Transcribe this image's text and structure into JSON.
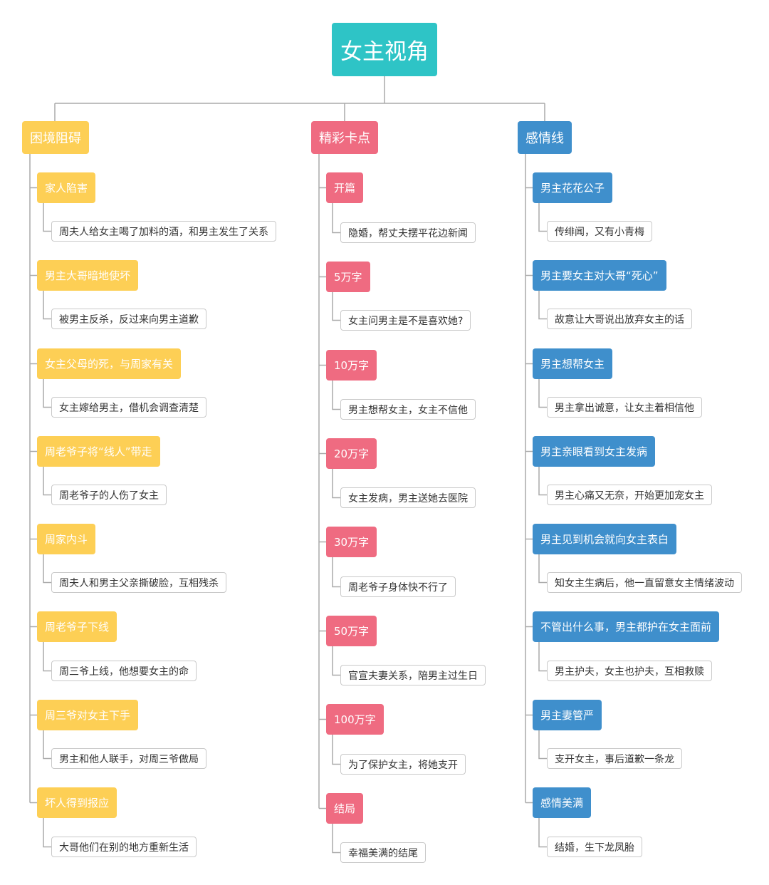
{
  "title": "女主视角",
  "colors": {
    "root": "#2ec4c6",
    "yellow": "#fdcf55",
    "pink": "#ef6b81",
    "blue": "#3f8fcc",
    "line": "#aaaaaa"
  },
  "branches": [
    {
      "label": "困境阻碍",
      "items": [
        {
          "label": "家人陷害",
          "detail": "周夫人给女主喝了加料的酒，和男主发生了关系"
        },
        {
          "label": "男主大哥暗地使坏",
          "detail": "被男主反杀，反过来向男主道歉"
        },
        {
          "label": "女主父母的死，与周家有关",
          "detail": "女主嫁给男主，借机会调查清楚"
        },
        {
          "label": "周老爷子将“线人”带走",
          "detail": "周老爷子的人伤了女主"
        },
        {
          "label": "周家内斗",
          "detail": "周夫人和男主父亲撕破脸，互相残杀"
        },
        {
          "label": "周老爷子下线",
          "detail": "周三爷上线，他想要女主的命"
        },
        {
          "label": "周三爷对女主下手",
          "detail": "男主和他人联手，对周三爷做局"
        },
        {
          "label": "坏人得到报应",
          "detail": "大哥他们在别的地方重新生活"
        }
      ]
    },
    {
      "label": "精彩卡点",
      "items": [
        {
          "label": "开篇",
          "detail": "隐婚，帮丈夫摆平花边新闻"
        },
        {
          "label": "5万字",
          "detail": "女主问男主是不是喜欢她?"
        },
        {
          "label": "10万字",
          "detail": "男主想帮女主，女主不信他"
        },
        {
          "label": "20万字",
          "detail": "女主发病，男主送她去医院"
        },
        {
          "label": "30万字",
          "detail": "周老爷子身体快不行了"
        },
        {
          "label": "50万字",
          "detail": "官宣夫妻关系，陪男主过生日"
        },
        {
          "label": "100万字",
          "detail": "为了保护女主，将她支开"
        },
        {
          "label": "结局",
          "detail": "幸福美满的结尾"
        }
      ]
    },
    {
      "label": "感情线",
      "items": [
        {
          "label": "男主花花公子",
          "detail": "传绯闻，又有小青梅"
        },
        {
          "label": "男主要女主对大哥“死心”",
          "detail": "故意让大哥说出放弃女主的话"
        },
        {
          "label": "男主想帮女主",
          "detail": "男主拿出诚意，让女主着相信他"
        },
        {
          "label": "男主亲眼看到女主发病",
          "detail": "男主心痛又无奈，开始更加宠女主"
        },
        {
          "label": "男主见到机会就向女主表白",
          "detail": "知女主生病后，他一直留意女主情绪波动"
        },
        {
          "label": "不管出什么事，男主都护在女主面前",
          "detail": "男主护夫，女主也护夫，互相救赎"
        },
        {
          "label": "男主妻管严",
          "detail": "支开女主，事后道歉一条龙"
        },
        {
          "label": "感情美满",
          "detail": "结婚，生下龙凤胎"
        }
      ]
    }
  ]
}
